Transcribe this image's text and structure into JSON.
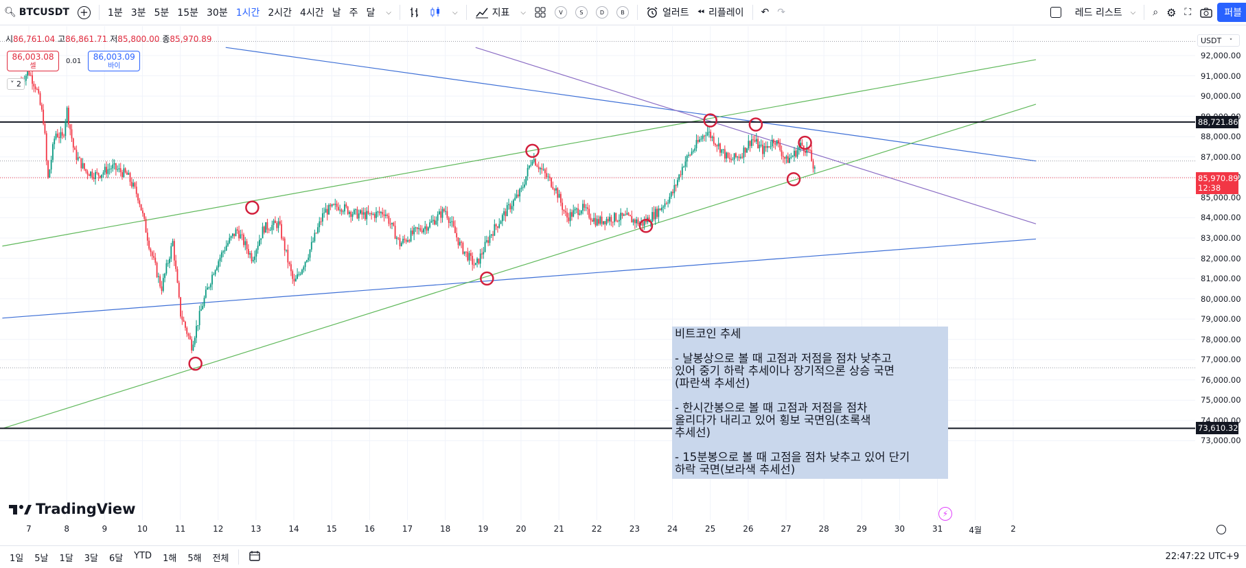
{
  "toolbar": {
    "symbol": "BTCUSDT",
    "intervals": [
      "1분",
      "3분",
      "5분",
      "15분",
      "30분",
      "1시간",
      "2시간",
      "4시간",
      "날",
      "주",
      "달"
    ],
    "active_interval": "1시간",
    "indicators_label": "지표",
    "mini_buttons": [
      "V",
      "S",
      "D",
      "B"
    ],
    "alert_label": "얼러트",
    "replay_label": "리플레이",
    "watchlist_label": "레드 리스트",
    "publish_label": "퍼블"
  },
  "legend": {
    "open_label": "시",
    "open": "86,761.04",
    "high_label": "고",
    "high": "86,861.71",
    "low_label": "저",
    "low": "85,800.00",
    "close_label": "종",
    "close": "85,970.89",
    "sell_price": "86,003.08",
    "sell_label": "셀",
    "spread": "0.01",
    "buy_price": "86,003.09",
    "buy_label": "바이",
    "collapse_count": "2"
  },
  "currency": "USDT",
  "price_axis": {
    "ticks": [
      "92,000.00",
      "91,000.00",
      "90,000.00",
      "89,000.00",
      "88,000.00",
      "87,000.00",
      "86,000.00",
      "85,000.00",
      "84,000.00",
      "83,000.00",
      "82,000.00",
      "81,000.00",
      "80,000.00",
      "79,000.00",
      "78,000.00",
      "77,000.00",
      "76,000.00",
      "75,000.00",
      "74,000.00",
      "73,000.00"
    ],
    "hline_top": "88,721.86",
    "current_price": "85,970.89",
    "countdown": "12:38",
    "hline_bottom": "73,610.32"
  },
  "time_axis": {
    "ticks": [
      "7",
      "8",
      "9",
      "10",
      "11",
      "12",
      "13",
      "14",
      "15",
      "16",
      "17",
      "18",
      "19",
      "20",
      "21",
      "22",
      "23",
      "24",
      "25",
      "26",
      "27",
      "28",
      "29",
      "30",
      "31",
      "4월",
      "2"
    ]
  },
  "note": {
    "lines": [
      "비트코인 추세",
      "",
      "- 날봉상으로 볼 때 고점과 저점을 점차 낮추고",
      "있어 중기 하락 추세이나 장기적으론 상승 국면",
      "(파란색 추세선)",
      "",
      "- 한시간봉으로 볼 때 고점과 저점을 점차",
      "올리다가 내리고 있어 횡보 국면임(초록색",
      "추세선)",
      "",
      "- 15분봉으로 볼 때 고점을 점차 낮추고 있어 단기",
      "하락 국면(보라색 추세선)"
    ]
  },
  "brand": "TradingView",
  "bottom": {
    "ranges": [
      "1일",
      "5날",
      "1달",
      "3달",
      "6달",
      "YTD",
      "1해",
      "5해",
      "전체"
    ],
    "clock": "22:47:22 UTC+9"
  },
  "colors": {
    "up": "#089981",
    "down": "#f23645",
    "blue_trend": "#3d6fd6",
    "green_trend": "#5fb85a",
    "purple_trend": "#8a6cc4",
    "note_bg": "#c9d7ec"
  },
  "chart_data": {
    "type": "candlestick",
    "x_unit": "day of month (Mar, hourly candles)",
    "close_path": [
      {
        "x": 6.8,
        "y": 90800
      },
      {
        "x": 7.0,
        "y": 91200
      },
      {
        "x": 7.2,
        "y": 90400
      },
      {
        "x": 7.4,
        "y": 88700
      },
      {
        "x": 7.5,
        "y": 85800
      },
      {
        "x": 7.7,
        "y": 88200
      },
      {
        "x": 7.9,
        "y": 87900
      },
      {
        "x": 8.0,
        "y": 89400
      },
      {
        "x": 8.2,
        "y": 87200
      },
      {
        "x": 8.5,
        "y": 86300
      },
      {
        "x": 8.8,
        "y": 86100
      },
      {
        "x": 9.2,
        "y": 86500
      },
      {
        "x": 9.6,
        "y": 86100
      },
      {
        "x": 9.9,
        "y": 85000
      },
      {
        "x": 10.2,
        "y": 82500
      },
      {
        "x": 10.5,
        "y": 80500
      },
      {
        "x": 10.8,
        "y": 82800
      },
      {
        "x": 11.0,
        "y": 79300
      },
      {
        "x": 11.3,
        "y": 77700
      },
      {
        "x": 11.6,
        "y": 79800
      },
      {
        "x": 11.9,
        "y": 81500
      },
      {
        "x": 12.2,
        "y": 82600
      },
      {
        "x": 12.5,
        "y": 83400
      },
      {
        "x": 12.9,
        "y": 82000
      },
      {
        "x": 13.2,
        "y": 83500
      },
      {
        "x": 13.6,
        "y": 83700
      },
      {
        "x": 14.0,
        "y": 80700
      },
      {
        "x": 14.4,
        "y": 82300
      },
      {
        "x": 14.8,
        "y": 84300
      },
      {
        "x": 15.2,
        "y": 84600
      },
      {
        "x": 15.6,
        "y": 84200
      },
      {
        "x": 16.0,
        "y": 84100
      },
      {
        "x": 16.4,
        "y": 84300
      },
      {
        "x": 16.8,
        "y": 82700
      },
      {
        "x": 17.2,
        "y": 83300
      },
      {
        "x": 17.6,
        "y": 83700
      },
      {
        "x": 18.0,
        "y": 84400
      },
      {
        "x": 18.4,
        "y": 82600
      },
      {
        "x": 18.8,
        "y": 81600
      },
      {
        "x": 19.2,
        "y": 83200
      },
      {
        "x": 19.6,
        "y": 84300
      },
      {
        "x": 20.0,
        "y": 85300
      },
      {
        "x": 20.3,
        "y": 87000
      },
      {
        "x": 20.6,
        "y": 86200
      },
      {
        "x": 20.9,
        "y": 85500
      },
      {
        "x": 21.2,
        "y": 84000
      },
      {
        "x": 21.6,
        "y": 84500
      },
      {
        "x": 22.0,
        "y": 83800
      },
      {
        "x": 22.4,
        "y": 84000
      },
      {
        "x": 22.8,
        "y": 84000
      },
      {
        "x": 23.2,
        "y": 83700
      },
      {
        "x": 23.6,
        "y": 84300
      },
      {
        "x": 24.0,
        "y": 85200
      },
      {
        "x": 24.3,
        "y": 86700
      },
      {
        "x": 24.6,
        "y": 87500
      },
      {
        "x": 24.9,
        "y": 88300
      },
      {
        "x": 25.2,
        "y": 87600
      },
      {
        "x": 25.5,
        "y": 86800
      },
      {
        "x": 25.8,
        "y": 87100
      },
      {
        "x": 26.1,
        "y": 87900
      },
      {
        "x": 26.4,
        "y": 87300
      },
      {
        "x": 26.7,
        "y": 87900
      },
      {
        "x": 27.0,
        "y": 86800
      },
      {
        "x": 27.2,
        "y": 87100
      },
      {
        "x": 27.4,
        "y": 87600
      },
      {
        "x": 27.6,
        "y": 87300
      },
      {
        "x": 27.8,
        "y": 86000
      }
    ],
    "ylim": [
      73000,
      92000
    ],
    "xlim": [
      6.3,
      33.6
    ],
    "hlines": [
      88721.86,
      73610.32
    ],
    "trendlines": [
      {
        "color": "blue",
        "from": [
          6.3,
          79050
        ],
        "to": [
          33.6,
          82950
        ]
      },
      {
        "color": "blue",
        "from": [
          12.2,
          92400
        ],
        "to": [
          33.6,
          86800
        ]
      },
      {
        "color": "green",
        "from": [
          6.3,
          82600
        ],
        "to": [
          33.6,
          91800
        ]
      },
      {
        "color": "green",
        "from": [
          6.3,
          73600
        ],
        "to": [
          33.6,
          89600
        ]
      },
      {
        "color": "purple",
        "from": [
          18.8,
          92400
        ],
        "to": [
          33.6,
          83700
        ]
      }
    ],
    "markers": [
      {
        "x": 11.4,
        "y": 76800
      },
      {
        "x": 12.9,
        "y": 84500
      },
      {
        "x": 19.1,
        "y": 81000
      },
      {
        "x": 20.3,
        "y": 87300
      },
      {
        "x": 23.3,
        "y": 83600
      },
      {
        "x": 25.0,
        "y": 88800
      },
      {
        "x": 26.2,
        "y": 88600
      },
      {
        "x": 27.2,
        "y": 85900
      },
      {
        "x": 27.5,
        "y": 87700
      }
    ]
  }
}
